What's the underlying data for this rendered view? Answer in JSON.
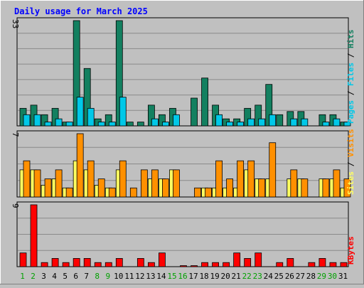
{
  "chart_data": {
    "type": "bar",
    "title": "Daily usage for March 2025",
    "categories": [
      "1",
      "2",
      "3",
      "4",
      "5",
      "6",
      "7",
      "8",
      "9",
      "10",
      "11",
      "12",
      "13",
      "14",
      "15",
      "16",
      "17",
      "18",
      "19",
      "20",
      "21",
      "22",
      "23",
      "24",
      "25",
      "26",
      "27",
      "28",
      "29",
      "30",
      "31"
    ],
    "weekend_days": [
      "1",
      "2",
      "8",
      "9",
      "15",
      "16",
      "22",
      "23",
      "29",
      "30"
    ],
    "panels": [
      {
        "id": "hits",
        "ylim": [
          0,
          33
        ],
        "max_label": "33",
        "legend": [
          "Pages",
          "Files",
          "Hits"
        ],
        "legend_separator": "/",
        "series": [
          {
            "name": "Hits",
            "color": "#138060",
            "values": [
              5.5,
              6.5,
              3.5,
              5.5,
              1.2,
              33,
              18,
              2.2,
              3.5,
              33,
              1.2,
              1.2,
              6.5,
              3.5,
              5.5,
              0,
              8.7,
              15,
              6.5,
              2.2,
              2.2,
              5.5,
              6.5,
              13,
              3.5,
              4.5,
              4.5,
              0,
              3.5,
              3.5,
              1.2
            ]
          },
          {
            "name": "Files",
            "color": "#00c8e8",
            "values": [
              3.5,
              3.5,
              1.2,
              2.2,
              1.2,
              9,
              5.5,
              1.2,
              1.2,
              9,
              0,
              0,
              2.2,
              1.2,
              3.5,
              0,
              0,
              0,
              3.5,
              1.2,
              1.2,
              2.2,
              2.2,
              3.5,
              0,
              2.2,
              2.2,
              0,
              1.2,
              2.2,
              1.2
            ]
          },
          {
            "name": "Pages",
            "color": "#00c8e8",
            "values": [
              0,
              0,
              0,
              0,
              0,
              0,
              0,
              0,
              0,
              0,
              0,
              0,
              0,
              0,
              0,
              0,
              0,
              0,
              0,
              0,
              0,
              0,
              0,
              0,
              0,
              0,
              0,
              0,
              0,
              0,
              0
            ]
          }
        ]
      },
      {
        "id": "visits",
        "ylim": [
          0,
          7
        ],
        "max_label": "7",
        "legend": [
          "Sites",
          "Visits"
        ],
        "legend_separator": "/",
        "series": [
          {
            "name": "Sites",
            "color": "#ffff60",
            "values": [
              3,
              3,
              1.3,
              2,
              1,
              4,
              3,
              1.3,
              1,
              3,
              0,
              0,
              2,
              2,
              3,
              0,
              0,
              1,
              1,
              1,
              1,
              3,
              2,
              2,
              0,
              2,
              2,
              0,
              2,
              2,
              1
            ]
          },
          {
            "name": "Visits",
            "color": "#ff9000",
            "values": [
              4,
              3,
              2,
              3,
              1,
              7,
              4,
              2,
              1,
              4,
              1,
              3,
              3,
              2,
              3,
              0,
              1,
              1,
              4,
              2,
              4,
              4,
              2,
              6,
              0,
              3,
              2,
              0,
              2,
              3,
              2
            ]
          }
        ]
      },
      {
        "id": "kbytes",
        "ylim": [
          0,
          9
        ],
        "max_label": "9",
        "legend": [
          "KBytes"
        ],
        "legend_separator": "",
        "series": [
          {
            "name": "KBytes",
            "color": "#ff0000",
            "values": [
              2,
              9,
              0.6,
              1.2,
              0.6,
              1.2,
              1.2,
              0.6,
              0.6,
              1.2,
              0,
              1.2,
              0.6,
              2,
              0,
              0.15,
              0.15,
              0.6,
              0.6,
              0.6,
              2,
              1.2,
              2,
              0,
              0.6,
              1.2,
              0,
              0.6,
              1.2,
              0.6,
              0.6
            ]
          }
        ]
      }
    ],
    "colors": {
      "title": "#0000ff",
      "plot_bg": "#c0c0c0",
      "grid": "#8a8a8a",
      "weekday_label": "#000000",
      "weekend_label": "#00a000",
      "legend_sep": "#000000"
    }
  }
}
